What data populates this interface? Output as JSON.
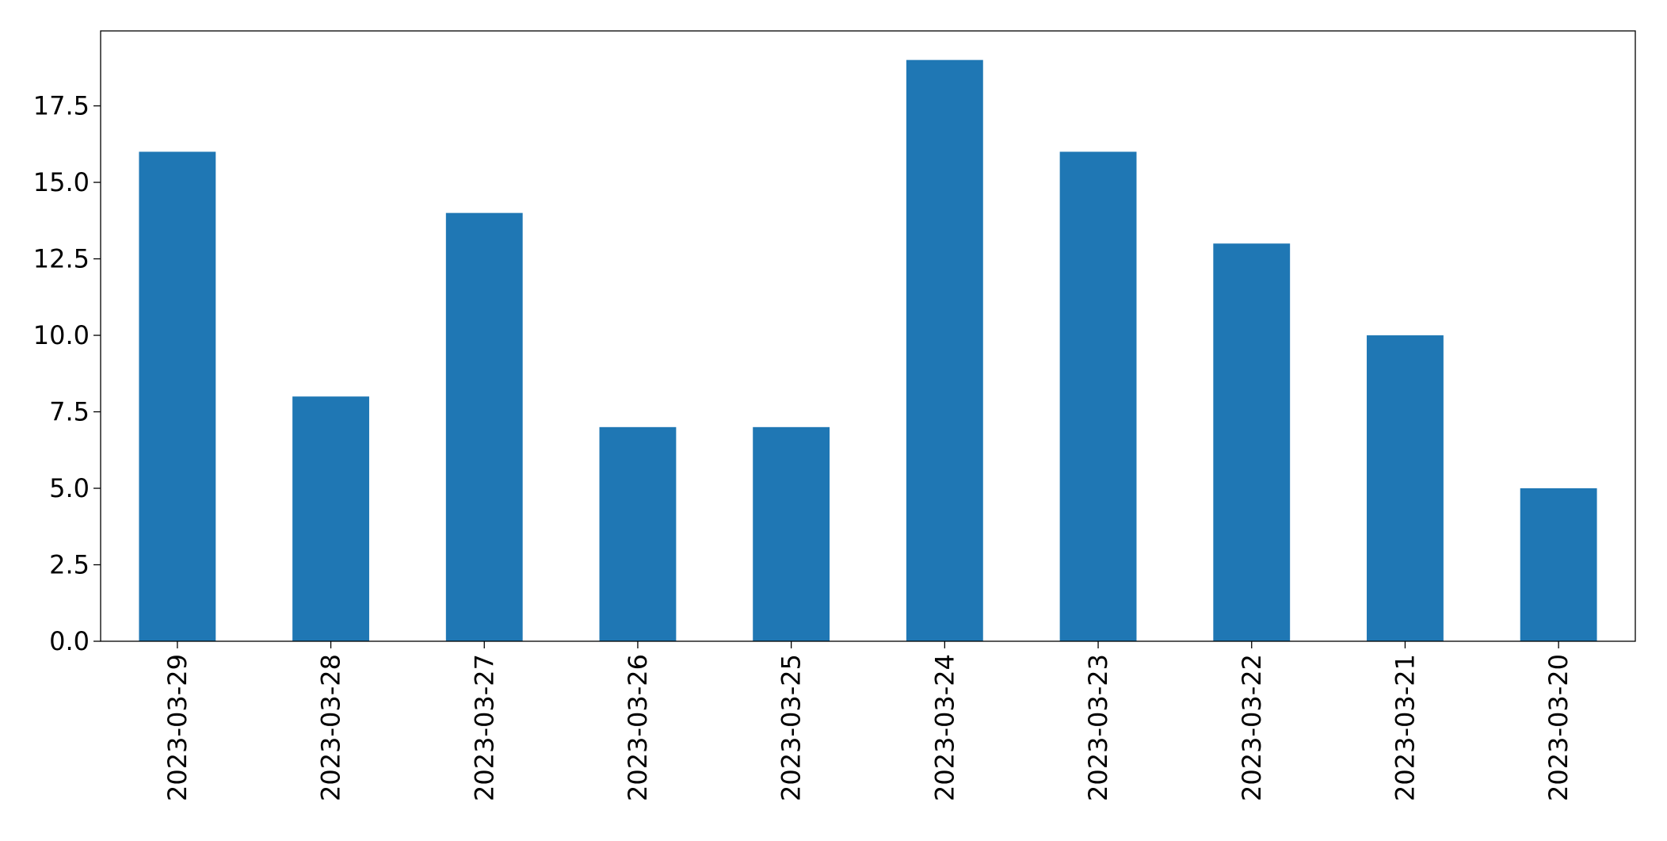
{
  "chart_data": {
    "type": "bar",
    "categories": [
      "2023-03-29",
      "2023-03-28",
      "2023-03-27",
      "2023-03-26",
      "2023-03-25",
      "2023-03-24",
      "2023-03-23",
      "2023-03-22",
      "2023-03-21",
      "2023-03-20"
    ],
    "values": [
      16,
      8,
      14,
      7,
      7,
      19,
      16,
      13,
      10,
      5
    ],
    "color": "#1f77b4",
    "ylim": [
      0,
      19.95
    ],
    "yticks": [
      {
        "value": 0,
        "label": "0.0"
      },
      2.5,
      {
        "value": 5,
        "label": "5.0"
      },
      7.5,
      {
        "value": 10,
        "label": "10.0"
      },
      12.5,
      {
        "value": 15,
        "label": "15.0"
      },
      17.5
    ],
    "grid": false
  }
}
